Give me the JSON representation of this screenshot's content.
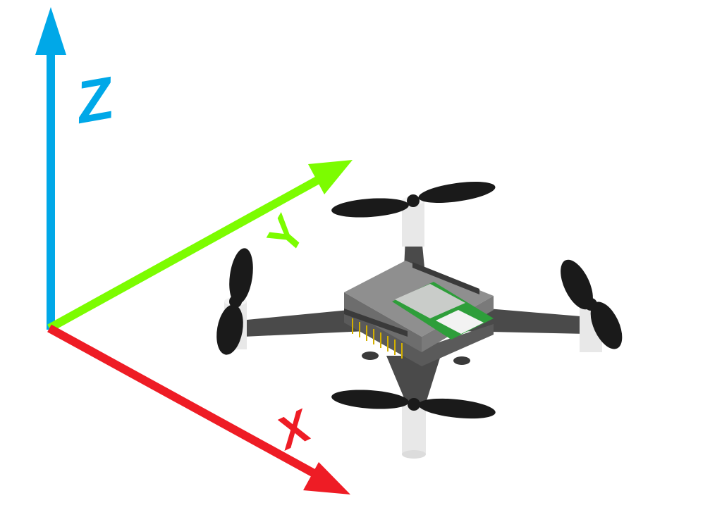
{
  "axes": {
    "x": {
      "label": "X",
      "color": "#ee1c25"
    },
    "y": {
      "label": "Y",
      "color": "#7cfc00"
    },
    "z": {
      "label": "Z",
      "color": "#00a8e8"
    }
  },
  "drone": {
    "frame_color": "#4a4a4a",
    "body_color": "#8f8f8f",
    "propeller_color": "#1a1a1a",
    "motor_color": "#e8e8e8",
    "board_color": "#2e9e3a",
    "chip_color": "#c9ccc9",
    "pin_color": "#d4b000"
  }
}
